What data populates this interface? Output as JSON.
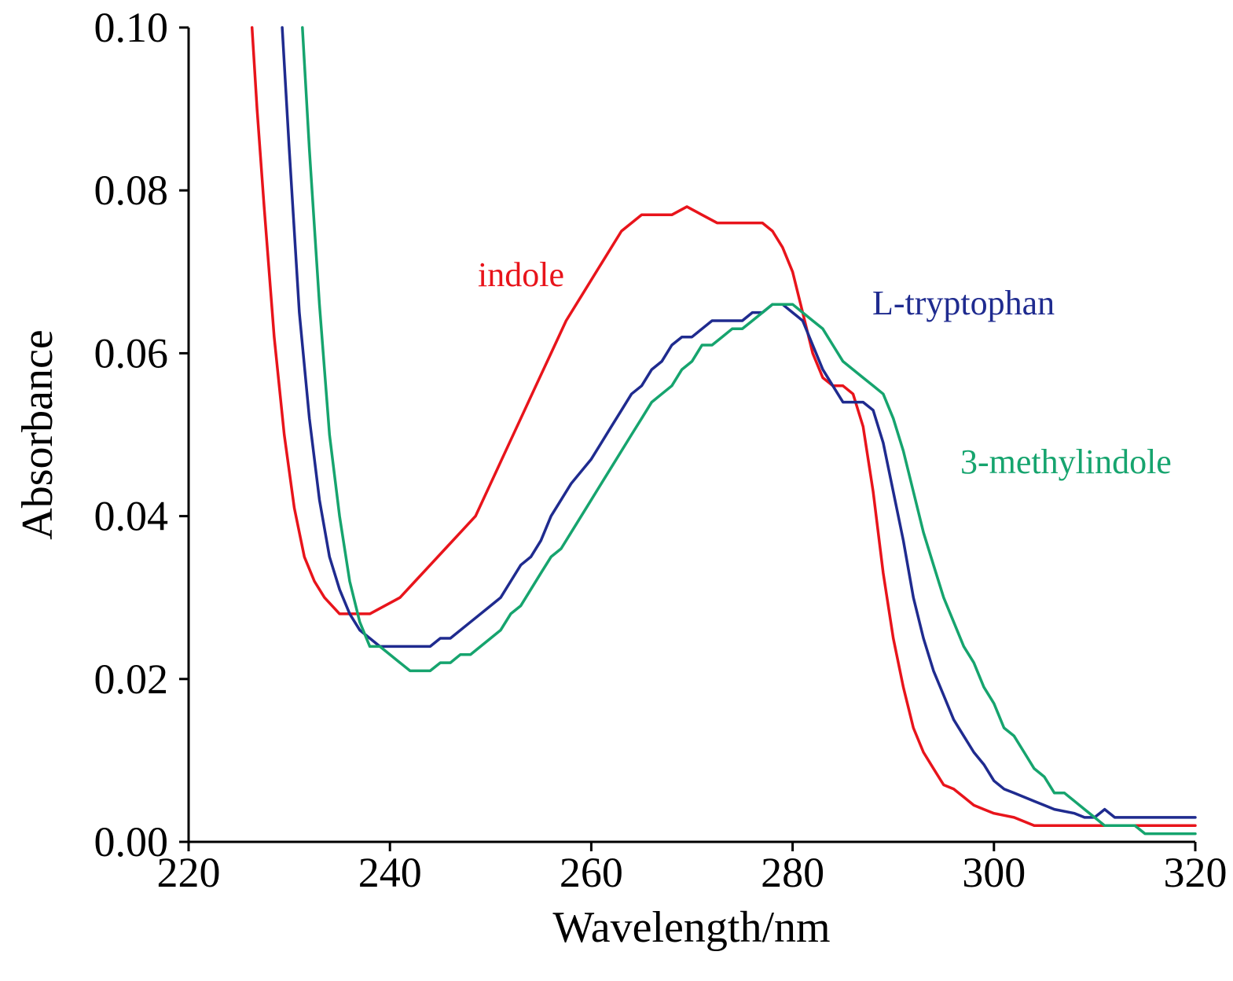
{
  "chart_data": {
    "type": "line",
    "xlabel": "Wavelength/nm",
    "ylabel": "Absorbance",
    "xlim": [
      220,
      320
    ],
    "ylim": [
      0,
      0.1
    ],
    "xticks": [
      "220",
      "240",
      "260",
      "280",
      "300",
      "320"
    ],
    "yticks": [
      "0.00",
      "0.02",
      "0.04",
      "0.06",
      "0.08",
      "0.10"
    ],
    "grid": false,
    "series": [
      {
        "name": "indole",
        "color": "#e8141b",
        "x": [
          226.3,
          226.8,
          227.5,
          228.5,
          229.5,
          230.5,
          231.5,
          232.5,
          233.5,
          235,
          236.5,
          238,
          239.5,
          241,
          242.5,
          244,
          245.5,
          247,
          248.5,
          250,
          251.5,
          253,
          254.5,
          256,
          257.5,
          259,
          261,
          263,
          265,
          266.5,
          268,
          269.5,
          271,
          272.5,
          274,
          276,
          277,
          278,
          279,
          280,
          281,
          282,
          283,
          284,
          285,
          286,
          287,
          288,
          289,
          290,
          291,
          292,
          293,
          294,
          295,
          296,
          297,
          298,
          299,
          300,
          302,
          304,
          306,
          310,
          314,
          320
        ],
        "y": [
          0.1,
          0.09,
          0.078,
          0.062,
          0.05,
          0.041,
          0.035,
          0.032,
          0.03,
          0.028,
          0.028,
          0.028,
          0.029,
          0.03,
          0.032,
          0.034,
          0.036,
          0.038,
          0.04,
          0.044,
          0.048,
          0.052,
          0.056,
          0.06,
          0.064,
          0.067,
          0.071,
          0.075,
          0.077,
          0.077,
          0.077,
          0.078,
          0.077,
          0.076,
          0.076,
          0.076,
          0.076,
          0.075,
          0.073,
          0.07,
          0.065,
          0.06,
          0.057,
          0.056,
          0.056,
          0.055,
          0.051,
          0.043,
          0.033,
          0.025,
          0.019,
          0.014,
          0.011,
          0.009,
          0.007,
          0.0065,
          0.0055,
          0.0045,
          0.004,
          0.0035,
          0.003,
          0.002,
          0.002,
          0.002,
          0.002,
          0.002
        ]
      },
      {
        "name": "L-tryptophan",
        "color": "#1f2b8f",
        "x": [
          229.3,
          230,
          231,
          232,
          233,
          234,
          235,
          236,
          237,
          238,
          239,
          240,
          242,
          244,
          245,
          246,
          248,
          250,
          251,
          252,
          253,
          254,
          255,
          256,
          257,
          258,
          260,
          262,
          263,
          264,
          265,
          266,
          267,
          268,
          269,
          270,
          271,
          272,
          273,
          274,
          275,
          276,
          277,
          278,
          278.5,
          279,
          280,
          281,
          282,
          283,
          284,
          285,
          286,
          287,
          288,
          289,
          290,
          291,
          292,
          293,
          294,
          295,
          296,
          297,
          298,
          299,
          300,
          301,
          302,
          303,
          304,
          305,
          306,
          308,
          309,
          310,
          311,
          312,
          313,
          316,
          320
        ],
        "y": [
          0.1,
          0.085,
          0.065,
          0.052,
          0.042,
          0.035,
          0.031,
          0.028,
          0.026,
          0.025,
          0.024,
          0.024,
          0.024,
          0.024,
          0.025,
          0.025,
          0.027,
          0.029,
          0.03,
          0.032,
          0.034,
          0.035,
          0.037,
          0.04,
          0.042,
          0.044,
          0.047,
          0.051,
          0.053,
          0.055,
          0.056,
          0.058,
          0.059,
          0.061,
          0.062,
          0.062,
          0.063,
          0.064,
          0.064,
          0.064,
          0.064,
          0.065,
          0.065,
          0.066,
          0.066,
          0.066,
          0.065,
          0.064,
          0.061,
          0.058,
          0.056,
          0.054,
          0.054,
          0.054,
          0.053,
          0.049,
          0.043,
          0.037,
          0.03,
          0.025,
          0.021,
          0.018,
          0.015,
          0.013,
          0.011,
          0.0095,
          0.0075,
          0.0065,
          0.006,
          0.0055,
          0.005,
          0.0045,
          0.004,
          0.0035,
          0.003,
          0.003,
          0.004,
          0.003,
          0.003,
          0.003,
          0.003
        ]
      },
      {
        "name": "3-methylindole",
        "color": "#16a46e",
        "x": [
          231.3,
          232,
          233,
          234,
          235,
          236,
          237,
          238,
          239,
          240,
          241,
          242,
          243,
          244,
          245,
          246,
          247,
          248,
          249,
          250,
          251,
          252,
          253,
          254,
          255,
          256,
          257,
          258,
          260,
          262,
          264,
          265,
          266,
          267,
          268,
          269,
          270,
          271,
          272,
          273,
          274,
          275,
          276,
          277,
          278,
          279,
          280,
          281,
          282,
          283,
          284,
          285,
          286,
          287,
          288,
          289,
          290,
          291,
          292,
          293,
          294,
          295,
          296,
          297,
          298,
          299,
          300,
          301,
          302,
          303,
          304,
          305,
          306,
          307,
          308,
          309,
          310,
          311,
          312,
          313,
          314,
          315,
          316,
          320
        ],
        "y": [
          0.1,
          0.085,
          0.066,
          0.05,
          0.04,
          0.032,
          0.027,
          0.024,
          0.024,
          0.023,
          0.022,
          0.021,
          0.021,
          0.021,
          0.022,
          0.022,
          0.023,
          0.023,
          0.024,
          0.025,
          0.026,
          0.028,
          0.029,
          0.031,
          0.033,
          0.035,
          0.036,
          0.038,
          0.042,
          0.046,
          0.05,
          0.052,
          0.054,
          0.055,
          0.056,
          0.058,
          0.059,
          0.061,
          0.061,
          0.062,
          0.063,
          0.063,
          0.064,
          0.065,
          0.066,
          0.066,
          0.066,
          0.065,
          0.064,
          0.063,
          0.061,
          0.059,
          0.058,
          0.057,
          0.056,
          0.055,
          0.052,
          0.048,
          0.043,
          0.038,
          0.034,
          0.03,
          0.027,
          0.024,
          0.022,
          0.019,
          0.017,
          0.014,
          0.013,
          0.011,
          0.009,
          0.008,
          0.006,
          0.006,
          0.005,
          0.004,
          0.003,
          0.002,
          0.002,
          0.002,
          0.002,
          0.001,
          0.001,
          0.001
        ]
      }
    ]
  }
}
